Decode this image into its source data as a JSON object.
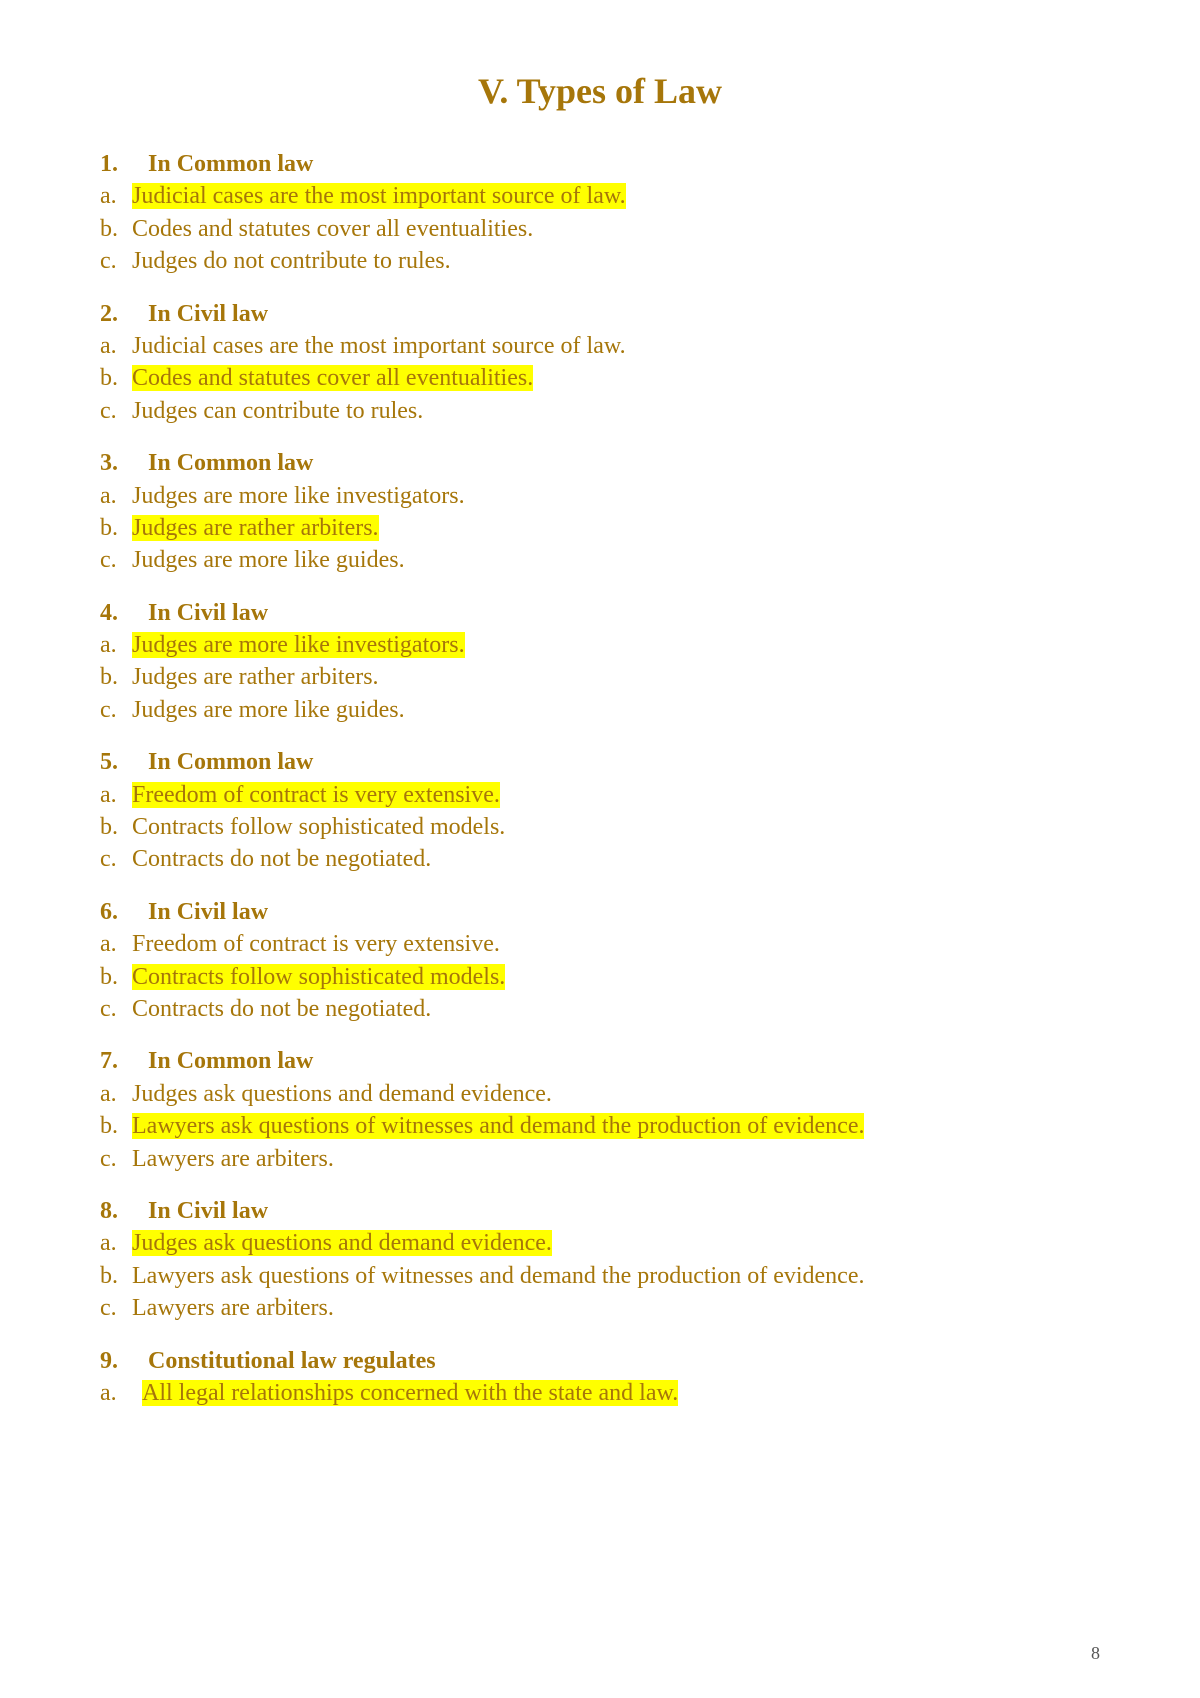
{
  "title_text": "V.   Types of Law",
  "page_number": "8",
  "colors": {
    "text": "#a6760a",
    "highlight": "#ffff00",
    "background": "#ffffff"
  },
  "questions": [
    {
      "number": "1.",
      "heading": "In Common law",
      "options": [
        {
          "label": "a.",
          "text": "Judicial cases are the most important source of law.",
          "highlighted": true
        },
        {
          "label": "b.",
          "text": "Codes and statutes cover all eventualities.",
          "highlighted": false
        },
        {
          "label": "c.",
          "text": "Judges do not contribute to rules.",
          "highlighted": false
        }
      ]
    },
    {
      "number": "2.",
      "heading": "In Civil law",
      "options": [
        {
          "label": "a.",
          "text": "Judicial cases are the most important source of law.",
          "highlighted": false
        },
        {
          "label": "b.",
          "text": "Codes and statutes cover all eventualities.",
          "highlighted": true
        },
        {
          "label": "c.",
          "text": "Judges can contribute to rules.",
          "highlighted": false
        }
      ]
    },
    {
      "number": "3.",
      "heading": "In Common law",
      "options": [
        {
          "label": "a.",
          "text": "Judges are more like investigators.",
          "highlighted": false
        },
        {
          "label": "b.",
          "text": "Judges are rather arbiters.",
          "highlighted": true
        },
        {
          "label": "c.",
          "text": "Judges are more like guides.",
          "highlighted": false
        }
      ]
    },
    {
      "number": "4.",
      "heading": "In Civil law",
      "options": [
        {
          "label": "a.",
          "text": "Judges are more like investigators.",
          "highlighted": true
        },
        {
          "label": "b.",
          "text": "Judges are rather arbiters.",
          "highlighted": false
        },
        {
          "label": "c.",
          "text": "Judges are more like guides.",
          "highlighted": false
        }
      ]
    },
    {
      "number": "5.",
      "heading": "In Common law",
      "options": [
        {
          "label": "a.",
          "text": "Freedom of contract is very extensive.",
          "highlighted": true
        },
        {
          "label": "b.",
          "text": "Contracts follow sophisticated models.",
          "highlighted": false
        },
        {
          "label": "c.",
          "text": "Contracts do not be negotiated.",
          "highlighted": false
        }
      ]
    },
    {
      "number": "6.",
      "heading": "In Civil law",
      "options": [
        {
          "label": "a.",
          "text": "Freedom of contract is very extensive.",
          "highlighted": false
        },
        {
          "label": "b.",
          "text": "Contracts follow sophisticated models.",
          "highlighted": true
        },
        {
          "label": "c.",
          "text": "Contracts do not be negotiated.",
          "highlighted": false
        }
      ]
    },
    {
      "number": "7.",
      "heading": "In Common law",
      "options": [
        {
          "label": "a.",
          "text": "Judges ask questions and demand evidence.",
          "highlighted": false
        },
        {
          "label": "b.",
          "text": "Lawyers ask questions of witnesses and demand the production of evidence.",
          "highlighted": true
        },
        {
          "label": "c.",
          "text": "Lawyers are arbiters.",
          "highlighted": false
        }
      ]
    },
    {
      "number": "8.",
      "heading": "In Civil law",
      "options": [
        {
          "label": "a.",
          "text": "Judges ask questions and demand evidence.",
          "highlighted": true
        },
        {
          "label": "b.",
          "text": "Lawyers ask questions of witnesses and demand the production of evidence.",
          "highlighted": false
        },
        {
          "label": "c.",
          "text": " Lawyers are arbiters.",
          "highlighted": false
        }
      ]
    },
    {
      "number": "9.",
      "heading": "Constitutional law regulates",
      "options": [
        {
          "label": "a.",
          "text": "All legal relationships concerned with the state and law.",
          "highlighted": true,
          "indent": true
        }
      ]
    }
  ]
}
